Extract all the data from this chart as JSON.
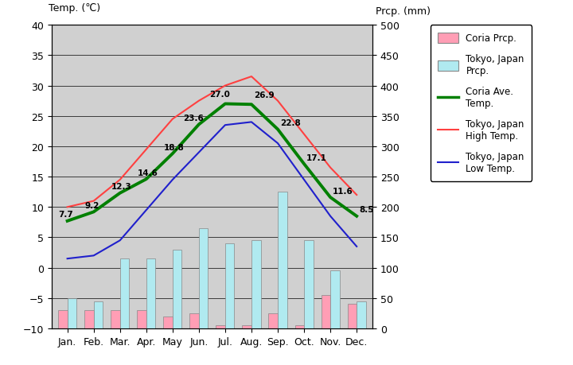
{
  "months": [
    "Jan.",
    "Feb.",
    "Mar.",
    "Apr.",
    "May",
    "Jun.",
    "Jul.",
    "Aug.",
    "Sep.",
    "Oct.",
    "Nov.",
    "Dec."
  ],
  "coria_prcp_mm": [
    30,
    30,
    30,
    30,
    20,
    25,
    5,
    5,
    25,
    5,
    55,
    40
  ],
  "tokyo_prcp_mm": [
    50,
    45,
    115,
    115,
    130,
    165,
    140,
    145,
    225,
    145,
    95,
    45
  ],
  "coria_ave_temp": [
    7.7,
    9.2,
    12.3,
    14.6,
    18.8,
    23.6,
    27.0,
    26.9,
    22.8,
    17.1,
    11.6,
    8.5
  ],
  "tokyo_high_temp": [
    10.0,
    11.0,
    14.5,
    19.5,
    24.5,
    27.5,
    30.0,
    31.5,
    27.5,
    22.0,
    16.5,
    12.0
  ],
  "tokyo_low_temp": [
    1.5,
    2.0,
    4.5,
    9.5,
    14.5,
    19.0,
    23.5,
    24.0,
    20.5,
    14.5,
    8.5,
    3.5
  ],
  "bar_width": 0.35,
  "left_ylim": [
    -10,
    40
  ],
  "right_ylim": [
    0,
    500
  ],
  "left_yticks": [
    -10,
    -5,
    0,
    5,
    10,
    15,
    20,
    25,
    30,
    35,
    40
  ],
  "right_yticks": [
    0,
    50,
    100,
    150,
    200,
    250,
    300,
    350,
    400,
    450,
    500
  ],
  "bg_color": "#d0d0d0",
  "coria_prcp_color": "#ff9eb5",
  "tokyo_prcp_color": "#b0eaf0",
  "coria_ave_color": "#008000",
  "tokyo_high_color": "#ff4040",
  "tokyo_low_color": "#2020cc",
  "title_left": "Temp. (℃)",
  "title_right": "Prcp. (mm)",
  "legend_labels": [
    "Coria Prcp.",
    "Tokyo, Japan\nPrcp.",
    "Coria Ave.\nTemp.",
    "Tokyo, Japan\nHigh Temp.",
    "Tokyo, Japan\nLow Temp."
  ]
}
